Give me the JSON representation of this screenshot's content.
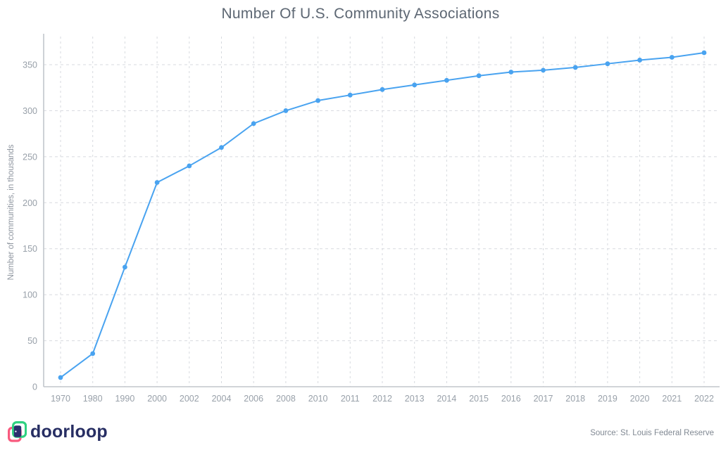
{
  "chart": {
    "title": "Number Of U.S. Community Associations",
    "ylabel": "Number of communities, in thousands"
  },
  "chart_data": {
    "type": "line",
    "title": "Number Of U.S. Community Associations",
    "xlabel": "",
    "ylabel": "Number of communities, in thousands",
    "categories": [
      "1970",
      "1980",
      "1990",
      "2000",
      "2002",
      "2004",
      "2006",
      "2008",
      "2010",
      "2011",
      "2012",
      "2013",
      "2014",
      "2015",
      "2016",
      "2017",
      "2018",
      "2019",
      "2020",
      "2021",
      "2022"
    ],
    "values": [
      10,
      36,
      130,
      222,
      240,
      260,
      286,
      300,
      311,
      317,
      323,
      328,
      333,
      338,
      342,
      344,
      347,
      351,
      355,
      358,
      363
    ],
    "yticks": [
      0,
      50,
      100,
      150,
      200,
      250,
      300,
      350
    ],
    "ylim": [
      0,
      383
    ],
    "grid": true,
    "legend": "none",
    "line_color": "#49a3f0",
    "marker": "circle"
  },
  "footer": {
    "logo_text": "doorloop",
    "source": "Source: St. Louis Federal Reserve"
  },
  "colors": {
    "title": "#5d6773",
    "tick_label": "#98a0a9",
    "gridline": "#d7dadf",
    "axis_line": "#c2c6cc",
    "logo_green": "#2fd181",
    "logo_pink": "#f85a7e",
    "logo_navy": "#2b2f6e",
    "logo_text_navy": "#272e63"
  }
}
